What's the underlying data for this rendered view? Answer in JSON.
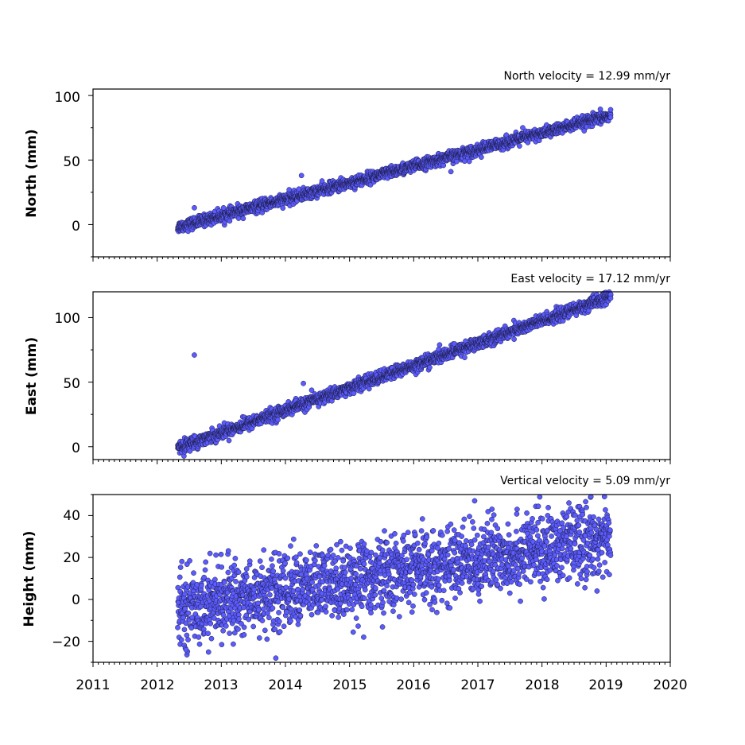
{
  "colors": {
    "marker_fill": "#5b5bff",
    "marker_edge": "#1a1a40",
    "axes": "#000000",
    "background": "#ffffff"
  },
  "chart_data": [
    {
      "type": "scatter",
      "title": "North velocity = 12.99 mm/yr",
      "xlabel": "",
      "ylabel": "North (mm)",
      "xlim": [
        2011,
        2020
      ],
      "ylim": [
        -25,
        105
      ],
      "yticks": [
        0,
        50,
        100
      ],
      "yticklabels": [
        "0",
        "50",
        "100"
      ],
      "xticklabels": [],
      "grid": false,
      "series": [
        {
          "x_start": 2012.32,
          "x_end": 2019.07,
          "y_trend_start": -2.0,
          "y_trend_end": 84.5,
          "noise_std": 2.2,
          "outliers": [
            {
              "x": 2012.58,
              "y": 13
            },
            {
              "x": 2014.25,
              "y": 38
            },
            {
              "x": 2016.58,
              "y": 41
            },
            {
              "x": 2017.7,
              "y": 75
            },
            {
              "x": 2019.07,
              "y": 89
            },
            {
              "x": 2019.07,
              "y": 83
            }
          ]
        }
      ]
    },
    {
      "type": "scatter",
      "title": "East velocity = 17.12 mm/yr",
      "xlabel": "",
      "ylabel": "East (mm)",
      "xlim": [
        2011,
        2020
      ],
      "ylim": [
        -10,
        120
      ],
      "yticks": [
        0,
        50,
        100
      ],
      "yticklabels": [
        "0",
        "50",
        "100"
      ],
      "xticklabels": [],
      "grid": false,
      "series": [
        {
          "x_start": 2012.32,
          "x_end": 2019.07,
          "y_trend_start": -1.0,
          "y_trend_end": 116.0,
          "noise_std": 2.4,
          "outliers": [
            {
              "x": 2012.58,
              "y": 71
            },
            {
              "x": 2014.28,
              "y": 49
            },
            {
              "x": 2019.07,
              "y": 118
            },
            {
              "x": 2019.07,
              "y": 115
            }
          ]
        }
      ]
    },
    {
      "type": "scatter",
      "title": "Vertical velocity = 5.09 mm/yr",
      "xlabel": "",
      "ylabel": "Height (mm)",
      "xlim": [
        2011,
        2020
      ],
      "ylim": [
        -30,
        50
      ],
      "yticks": [
        -20,
        0,
        20,
        40
      ],
      "yticklabels": [
        "−20",
        "0",
        "20",
        "40"
      ],
      "xticks": [
        2011,
        2012,
        2013,
        2014,
        2015,
        2016,
        2017,
        2018,
        2019,
        2020
      ],
      "xticklabels": [
        "2011",
        "2012",
        "2013",
        "2014",
        "2015",
        "2016",
        "2017",
        "2018",
        "2019",
        "2020"
      ],
      "grid": false,
      "series": [
        {
          "x_start": 2012.32,
          "x_end": 2019.07,
          "y_trend_start": -4.0,
          "y_trend_end": 29.0,
          "noise_std": 8.5,
          "outliers": [
            {
              "x": 2012.45,
              "y": -24
            },
            {
              "x": 2013.85,
              "y": -28
            },
            {
              "x": 2015.22,
              "y": -18
            },
            {
              "x": 2016.95,
              "y": 47
            },
            {
              "x": 2018.42,
              "y": 46
            },
            {
              "x": 2017.22,
              "y": 43
            }
          ]
        }
      ]
    }
  ]
}
